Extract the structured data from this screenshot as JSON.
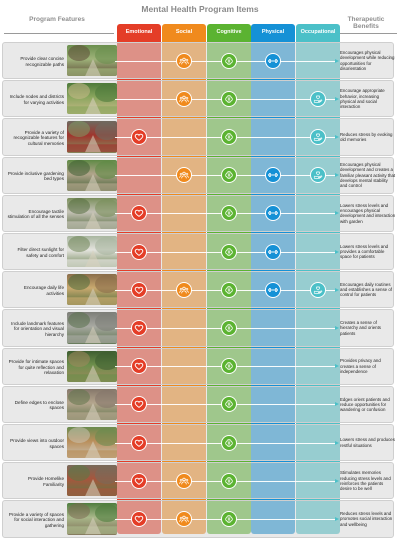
{
  "title": "Mental Health Program Items",
  "left_header": "Program Features",
  "right_header": "Therapeutic Benefits",
  "columns": [
    {
      "label": "Emotional",
      "color": "#e43d27",
      "icon": "heart-icon"
    },
    {
      "label": "Social",
      "color": "#f08a1d",
      "icon": "group-icon"
    },
    {
      "label": "Cognitive",
      "color": "#5bb331",
      "icon": "brain-icon"
    },
    {
      "label": "Physical",
      "color": "#1591d6",
      "icon": "dumbbell-icon"
    },
    {
      "label": "Occupational",
      "color": "#4bc0c8",
      "icon": "hand-heart-icon"
    }
  ],
  "rows": [
    {
      "feature": "Provide clear concise recognizable paths",
      "benefit": "Encourages physical development while reducing opportunities for disorientation",
      "marks": [
        false,
        true,
        true,
        true,
        false
      ]
    },
    {
      "feature": "Include nodes and districts for varying activities",
      "benefit": "Encourage appropriate behavior, increasing physical and social interaction",
      "marks": [
        false,
        true,
        true,
        false,
        true
      ]
    },
    {
      "feature": "Provide a variety of recognizable features for cultural memories",
      "benefit": "Reduces stress by evoking old memories",
      "marks": [
        true,
        false,
        true,
        false,
        true
      ]
    },
    {
      "feature": "Provide inclusive gardening bed types",
      "benefit": "Encourages physical development and creates a familiar pleasant activity that develops mental stability and control",
      "marks": [
        false,
        true,
        true,
        true,
        true
      ]
    },
    {
      "feature": "Encourage tactile stimulation of all the senses",
      "benefit": "Lowers stress levels and encourages physical development and interaction with garden",
      "marks": [
        true,
        false,
        true,
        true,
        false
      ]
    },
    {
      "feature": "Filter direct sunlight for safety and comfort",
      "benefit": "Lowers stress levels and provides a comfortable space for patients",
      "marks": [
        true,
        false,
        true,
        true,
        false
      ]
    },
    {
      "feature": "Encourage daily life activities",
      "benefit": "Encourages daily routines and establishes a sense of control for patients",
      "marks": [
        true,
        true,
        true,
        true,
        true
      ]
    },
    {
      "feature": "Include landmark features for orientation and visual hierarchy",
      "benefit": "Creates a sense of hierarchy and orients patients",
      "marks": [
        true,
        false,
        true,
        false,
        false
      ]
    },
    {
      "feature": "Provide for intimate spaces for quite reflection and relaxation",
      "benefit": "Provides privacy and creates a sense of independence",
      "marks": [
        true,
        false,
        true,
        false,
        false
      ]
    },
    {
      "feature": "Define edges to enclose spaces",
      "benefit": "Edges orient patients and reduce opportunities for wandering or confusion",
      "marks": [
        true,
        false,
        true,
        false,
        false
      ]
    },
    {
      "feature": "Provide views into outdoor spaces",
      "benefit": "Lowers stress and produces restful situations",
      "marks": [
        true,
        false,
        true,
        false,
        false
      ]
    },
    {
      "feature": "Provide Homelike Familiarity",
      "benefit": "Stimulates memories reducing stress levels and reinforces the patients desire to be well",
      "marks": [
        true,
        true,
        true,
        false,
        false
      ]
    },
    {
      "feature": "Provide a variety of spaces for social interaction and gathering",
      "benefit": "Reduces stress levels and promotes social interaction and wellbeing",
      "marks": [
        true,
        true,
        true,
        false,
        false
      ]
    }
  ]
}
